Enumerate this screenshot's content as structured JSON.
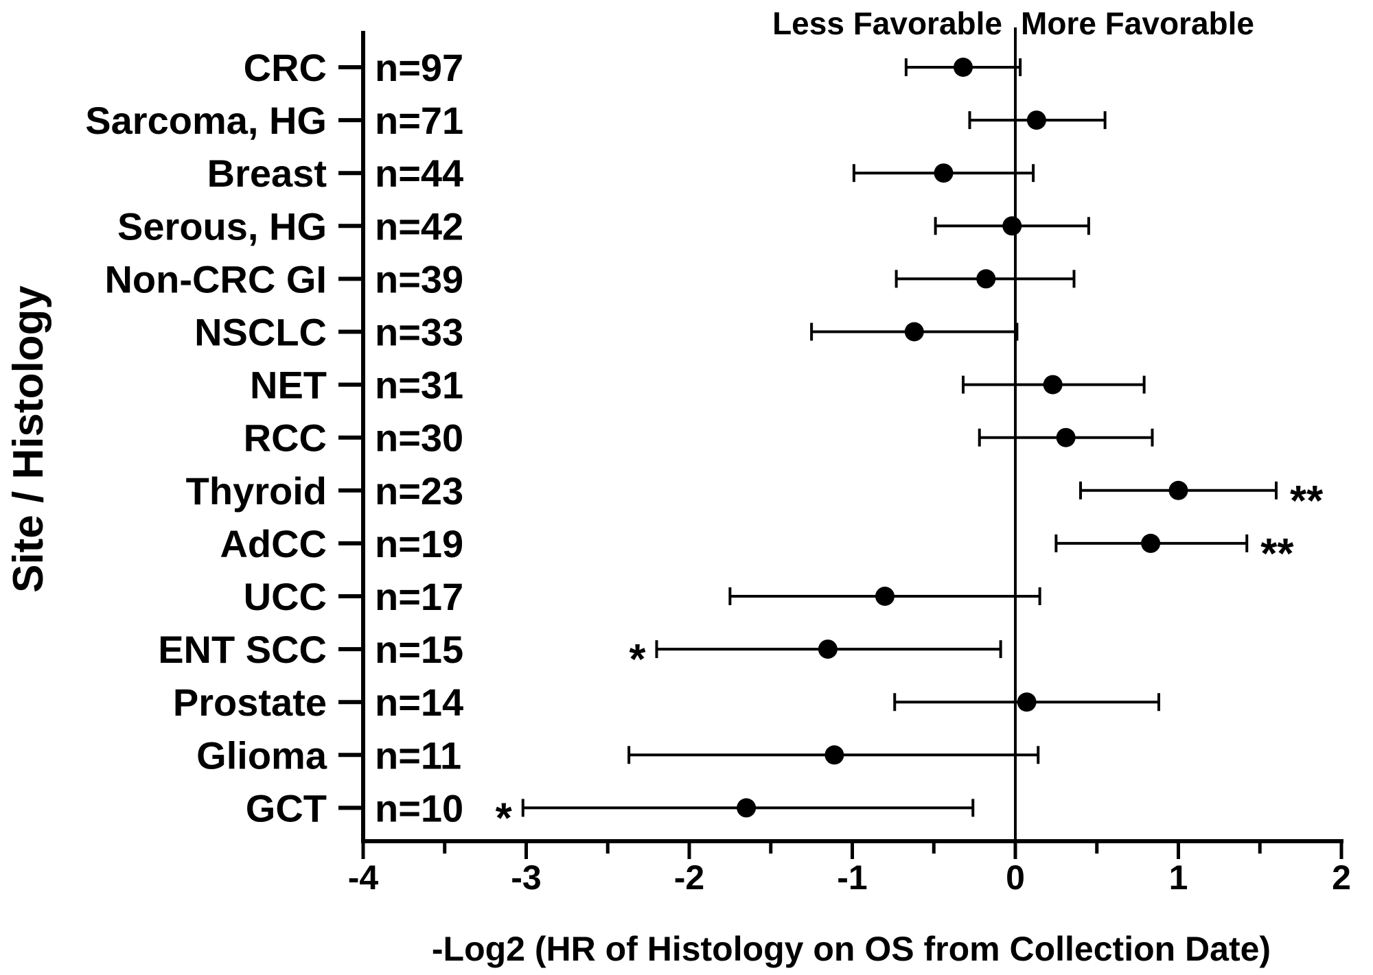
{
  "chart_data": {
    "type": "scatter",
    "subtype": "forest-plot",
    "xlabel": "-Log2 (HR of Histology on OS from Collection Date)",
    "ylabel": "Site / Histology",
    "xlim": [
      -4,
      2
    ],
    "xticks": [
      "-4",
      "-3",
      "-2",
      "-1",
      "0",
      "1",
      "2"
    ],
    "header_left": "Less Favorable",
    "header_right": "More Favorable",
    "reference_line": 0,
    "rows": [
      {
        "label": "CRC",
        "n": "n=97",
        "est": -0.32,
        "lo": -0.67,
        "hi": 0.03,
        "sig": ""
      },
      {
        "label": "Sarcoma, HG",
        "n": "n=71",
        "est": 0.13,
        "lo": -0.28,
        "hi": 0.55,
        "sig": ""
      },
      {
        "label": "Breast",
        "n": "n=44",
        "est": -0.44,
        "lo": -0.99,
        "hi": 0.11,
        "sig": ""
      },
      {
        "label": "Serous, HG",
        "n": "n=42",
        "est": -0.02,
        "lo": -0.49,
        "hi": 0.45,
        "sig": ""
      },
      {
        "label": "Non-CRC GI",
        "n": "n=39",
        "est": -0.18,
        "lo": -0.73,
        "hi": 0.36,
        "sig": ""
      },
      {
        "label": "NSCLC",
        "n": "n=33",
        "est": -0.62,
        "lo": -1.25,
        "hi": 0.01,
        "sig": ""
      },
      {
        "label": "NET",
        "n": "n=31",
        "est": 0.23,
        "lo": -0.32,
        "hi": 0.79,
        "sig": ""
      },
      {
        "label": "RCC",
        "n": "n=30",
        "est": 0.31,
        "lo": -0.22,
        "hi": 0.84,
        "sig": ""
      },
      {
        "label": "Thyroid",
        "n": "n=23",
        "est": 1.0,
        "lo": 0.4,
        "hi": 1.6,
        "sig": "**"
      },
      {
        "label": "AdCC",
        "n": "n=19",
        "est": 0.83,
        "lo": 0.25,
        "hi": 1.42,
        "sig": "**"
      },
      {
        "label": "UCC",
        "n": "n=17",
        "est": -0.8,
        "lo": -1.75,
        "hi": 0.15,
        "sig": ""
      },
      {
        "label": "ENT SCC",
        "n": "n=15",
        "est": -1.15,
        "lo": -2.2,
        "hi": -0.09,
        "sig": "*"
      },
      {
        "label": "Prostate",
        "n": "n=14",
        "est": 0.07,
        "lo": -0.74,
        "hi": 0.88,
        "sig": ""
      },
      {
        "label": "Glioma",
        "n": "n=11",
        "est": -1.11,
        "lo": -2.37,
        "hi": 0.14,
        "sig": ""
      },
      {
        "label": "GCT",
        "n": "n=10",
        "est": -1.65,
        "lo": -3.02,
        "hi": -0.26,
        "sig": "*"
      }
    ]
  }
}
